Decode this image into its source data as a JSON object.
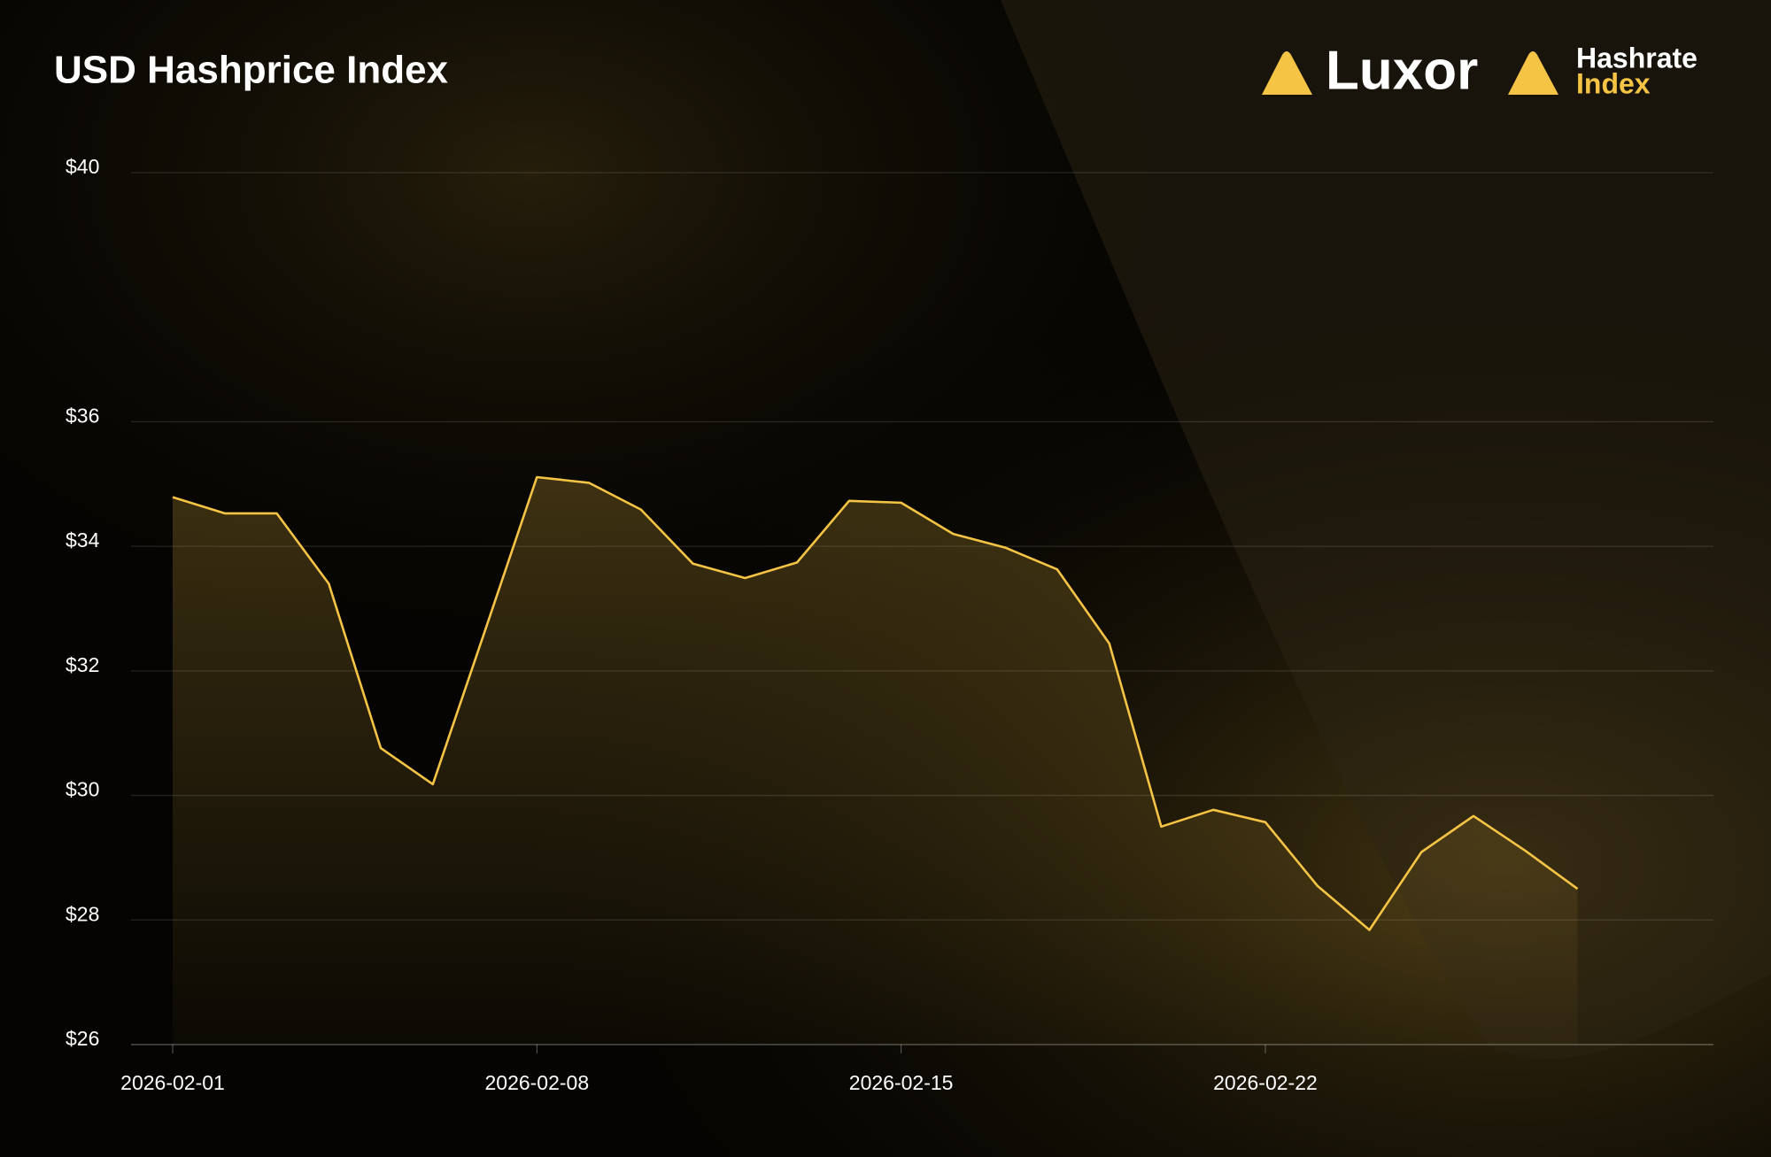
{
  "brand": {
    "logo": "Luxor",
    "product": "Hashrate",
    "product_sub": "Index"
  },
  "chart_data": {
    "type": "area",
    "title": "USD Hashprice Index",
    "x": [
      "2026-02-01",
      "2026-02-02",
      "2026-02-03",
      "2026-02-04",
      "2026-02-05",
      "2026-02-06",
      "2026-02-07",
      "2026-02-08",
      "2026-02-09",
      "2026-02-10",
      "2026-02-11",
      "2026-02-12",
      "2026-02-13",
      "2026-02-14",
      "2026-02-15",
      "2026-02-16",
      "2026-02-17",
      "2026-02-18",
      "2026-02-19",
      "2026-02-20",
      "2026-02-21",
      "2026-02-22",
      "2026-02-23",
      "2026-02-24",
      "2026-02-25",
      "2026-02-26",
      "2026-02-27",
      "2026-02-28"
    ],
    "xticks": [
      "2026-02-01",
      "2026-02-08",
      "2026-02-15",
      "2026-02-22"
    ],
    "series": [
      {
        "name": "USD Hashprice",
        "color": "#f6c445",
        "values": [
          34.79,
          34.53,
          34.53,
          33.4,
          30.76,
          30.18,
          32.64,
          35.11,
          35.02,
          34.59,
          33.72,
          33.49,
          33.74,
          34.73,
          34.7,
          34.2,
          33.98,
          33.63,
          32.44,
          29.5,
          29.77,
          29.57,
          28.55,
          27.84,
          29.09,
          29.67,
          29.11,
          28.5
        ]
      }
    ],
    "ylim": [
      26,
      40
    ],
    "yticks": [
      {
        "value": 26,
        "label": "$26"
      },
      {
        "value": 28,
        "label": "$28"
      },
      {
        "value": 30,
        "label": "$30"
      },
      {
        "value": 32,
        "label": "$32"
      },
      {
        "value": 34,
        "label": "$34"
      },
      {
        "value": 36,
        "label": "$36"
      },
      {
        "value": 40,
        "label": "$40"
      }
    ],
    "grid": true
  }
}
